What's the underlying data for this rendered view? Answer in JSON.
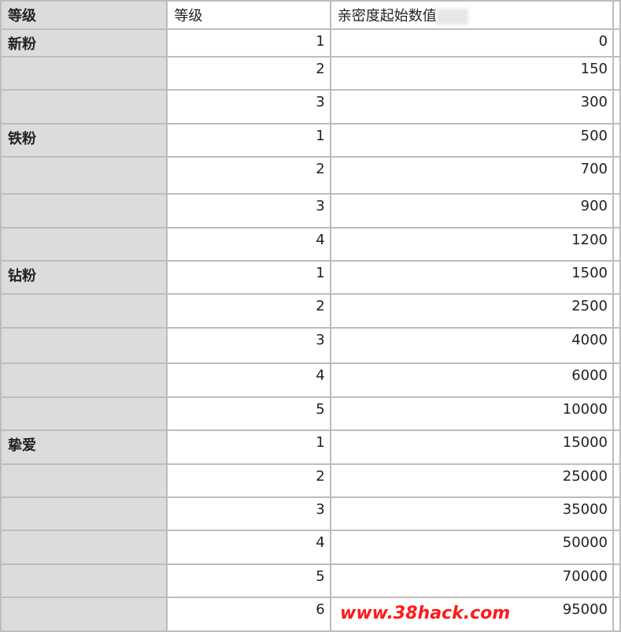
{
  "header": {
    "col0": "等级",
    "col1": "等级",
    "col2": "亲密度起始数值"
  },
  "rows": [
    {
      "group": "新粉",
      "level": "1",
      "value": "0"
    },
    {
      "group": "",
      "level": "2",
      "value": "150"
    },
    {
      "group": "",
      "level": "3",
      "value": "300"
    },
    {
      "group": "铁粉",
      "level": "1",
      "value": "500"
    },
    {
      "group": "",
      "level": "2",
      "value": "700"
    },
    {
      "group": "",
      "level": "3",
      "value": "900"
    },
    {
      "group": "",
      "level": "4",
      "value": "1200"
    },
    {
      "group": "钻粉",
      "level": "1",
      "value": "1500"
    },
    {
      "group": "",
      "level": "2",
      "value": "2500"
    },
    {
      "group": "",
      "level": "3",
      "value": "4000"
    },
    {
      "group": "",
      "level": "4",
      "value": "6000"
    },
    {
      "group": "",
      "level": "5",
      "value": "10000"
    },
    {
      "group": "挚爱",
      "level": "1",
      "value": "15000"
    },
    {
      "group": "",
      "level": "2",
      "value": "25000"
    },
    {
      "group": "",
      "level": "3",
      "value": "35000"
    },
    {
      "group": "",
      "level": "4",
      "value": "50000"
    },
    {
      "group": "",
      "level": "5",
      "value": "70000"
    },
    {
      "group": "",
      "level": "6",
      "value": "95000"
    }
  ],
  "watermark": "www.38hack.com"
}
